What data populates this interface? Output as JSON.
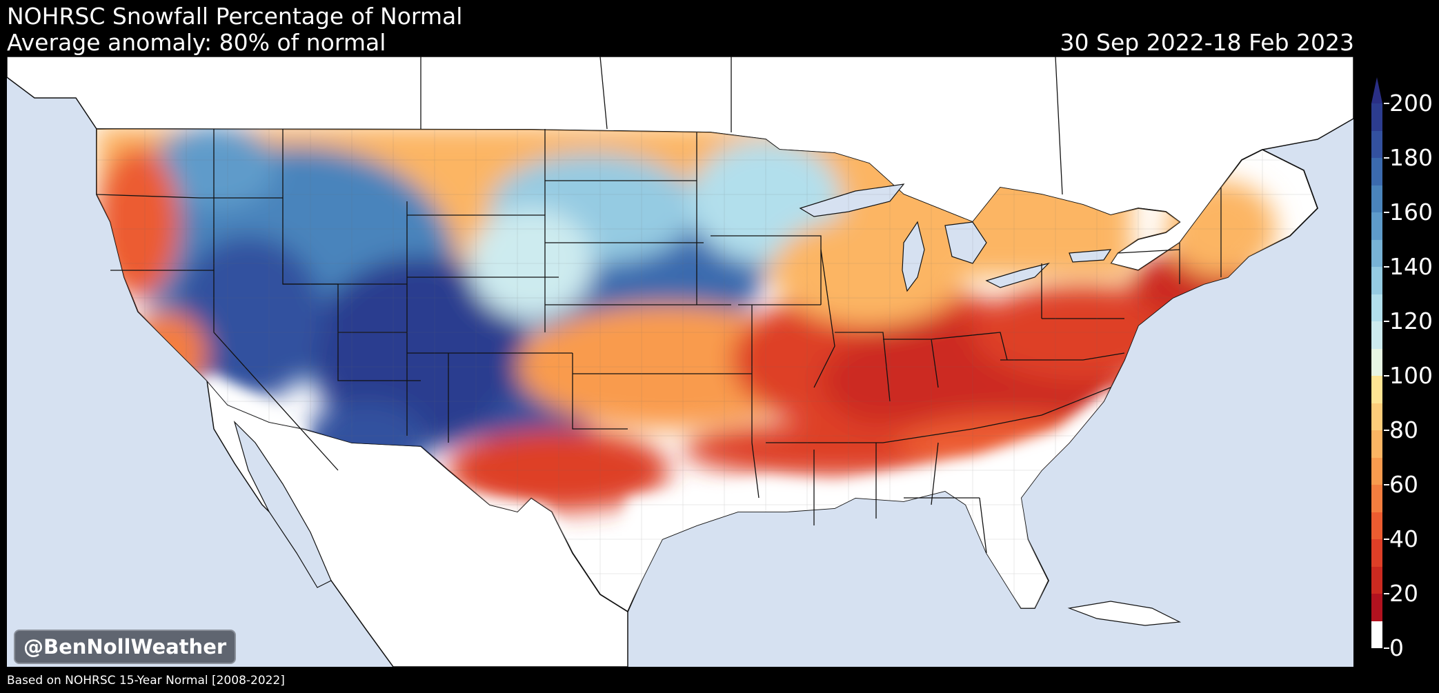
{
  "header": {
    "title": "NOHRSC Snowfall Percentage of Normal",
    "subtitle": "Average anomaly: 80% of normal",
    "date_range": "30 Sep 2022-18 Feb 2023"
  },
  "watermark": "@BenNollWeather",
  "footnote": "Based on NOHRSC 15-Year Normal [2008-2022]",
  "colors": {
    "background": "#000000",
    "water": "#d6e1f1",
    "land_outside": "#ffffff",
    "border_lines": "#111111"
  },
  "colorbar": {
    "min": 0,
    "max": 200,
    "extend": "max",
    "tick_labels": [
      "0",
      "20",
      "40",
      "60",
      "80",
      "100",
      "120",
      "140",
      "160",
      "180",
      "200"
    ],
    "segments": [
      {
        "from": 0,
        "to": 10,
        "color": "#ffffff"
      },
      {
        "from": 10,
        "to": 20,
        "color": "#b2121f"
      },
      {
        "from": 20,
        "to": 30,
        "color": "#cc2a20"
      },
      {
        "from": 30,
        "to": 40,
        "color": "#de3f27"
      },
      {
        "from": 40,
        "to": 50,
        "color": "#ec5c30"
      },
      {
        "from": 50,
        "to": 60,
        "color": "#f47e3f"
      },
      {
        "from": 60,
        "to": 70,
        "color": "#f99b4e"
      },
      {
        "from": 70,
        "to": 80,
        "color": "#fcb563"
      },
      {
        "from": 80,
        "to": 90,
        "color": "#fdcd7a"
      },
      {
        "from": 90,
        "to": 100,
        "color": "#fee594"
      },
      {
        "from": 100,
        "to": 110,
        "color": "#e8f6e4"
      },
      {
        "from": 110,
        "to": 120,
        "color": "#cdebef"
      },
      {
        "from": 120,
        "to": 130,
        "color": "#b2dfec"
      },
      {
        "from": 130,
        "to": 140,
        "color": "#95cbe2"
      },
      {
        "from": 140,
        "to": 150,
        "color": "#78b3d6"
      },
      {
        "from": 150,
        "to": 160,
        "color": "#5e9bca"
      },
      {
        "from": 160,
        "to": 170,
        "color": "#4a84bc"
      },
      {
        "from": 170,
        "to": 180,
        "color": "#3b6aae"
      },
      {
        "from": 180,
        "to": 190,
        "color": "#33519f"
      },
      {
        "from": 190,
        "to": 200,
        "color": "#2c3c8f"
      }
    ],
    "over_color": "#2a2f85"
  }
}
